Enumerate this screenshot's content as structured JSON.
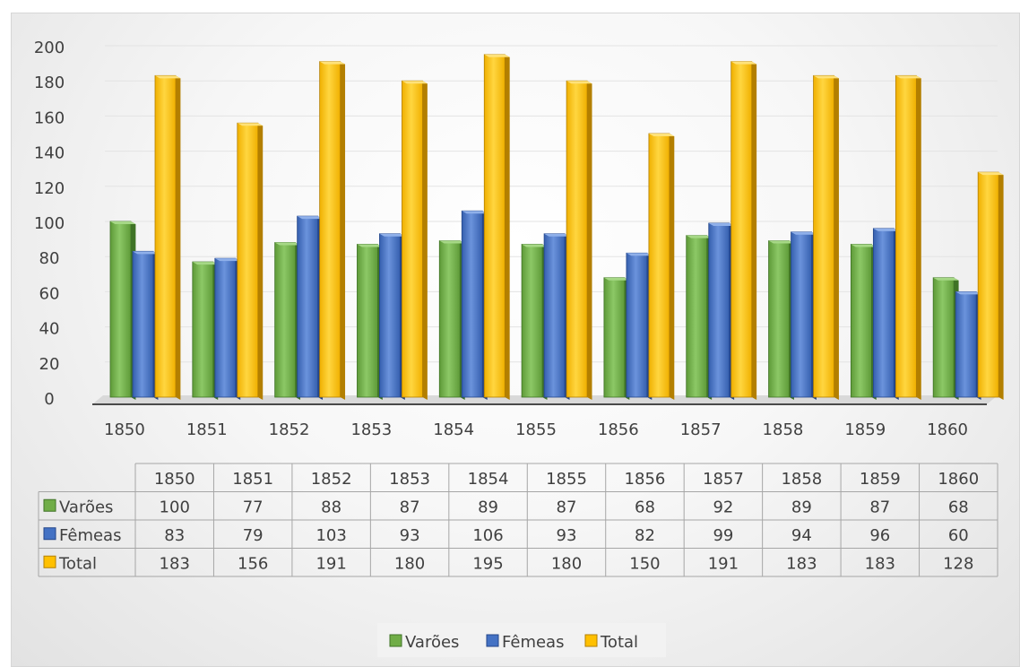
{
  "chart_data": {
    "type": "bar",
    "variant": "3d-clustered-column-with-data-table",
    "title": "",
    "xlabel": "",
    "ylabel": "",
    "ylim": [
      0,
      200
    ],
    "y_ticks": [
      "0",
      "20",
      "40",
      "60",
      "80",
      "100",
      "120",
      "140",
      "160",
      "180",
      "200"
    ],
    "grid": true,
    "legend_position": "bottom",
    "categories": [
      "1850",
      "1851",
      "1852",
      "1853",
      "1854",
      "1855",
      "1856",
      "1857",
      "1858",
      "1859",
      "1860"
    ],
    "series": [
      {
        "name": "Varões",
        "color": "#70ad47",
        "values": [
          100,
          77,
          88,
          87,
          89,
          87,
          68,
          92,
          89,
          87,
          68
        ]
      },
      {
        "name": "Fêmeas",
        "color": "#4472c4",
        "values": [
          83,
          79,
          103,
          93,
          106,
          93,
          82,
          99,
          94,
          96,
          60
        ]
      },
      {
        "name": "Total",
        "color": "#ffc000",
        "values": [
          183,
          156,
          191,
          180,
          195,
          180,
          150,
          191,
          183,
          183,
          128
        ]
      }
    ]
  }
}
